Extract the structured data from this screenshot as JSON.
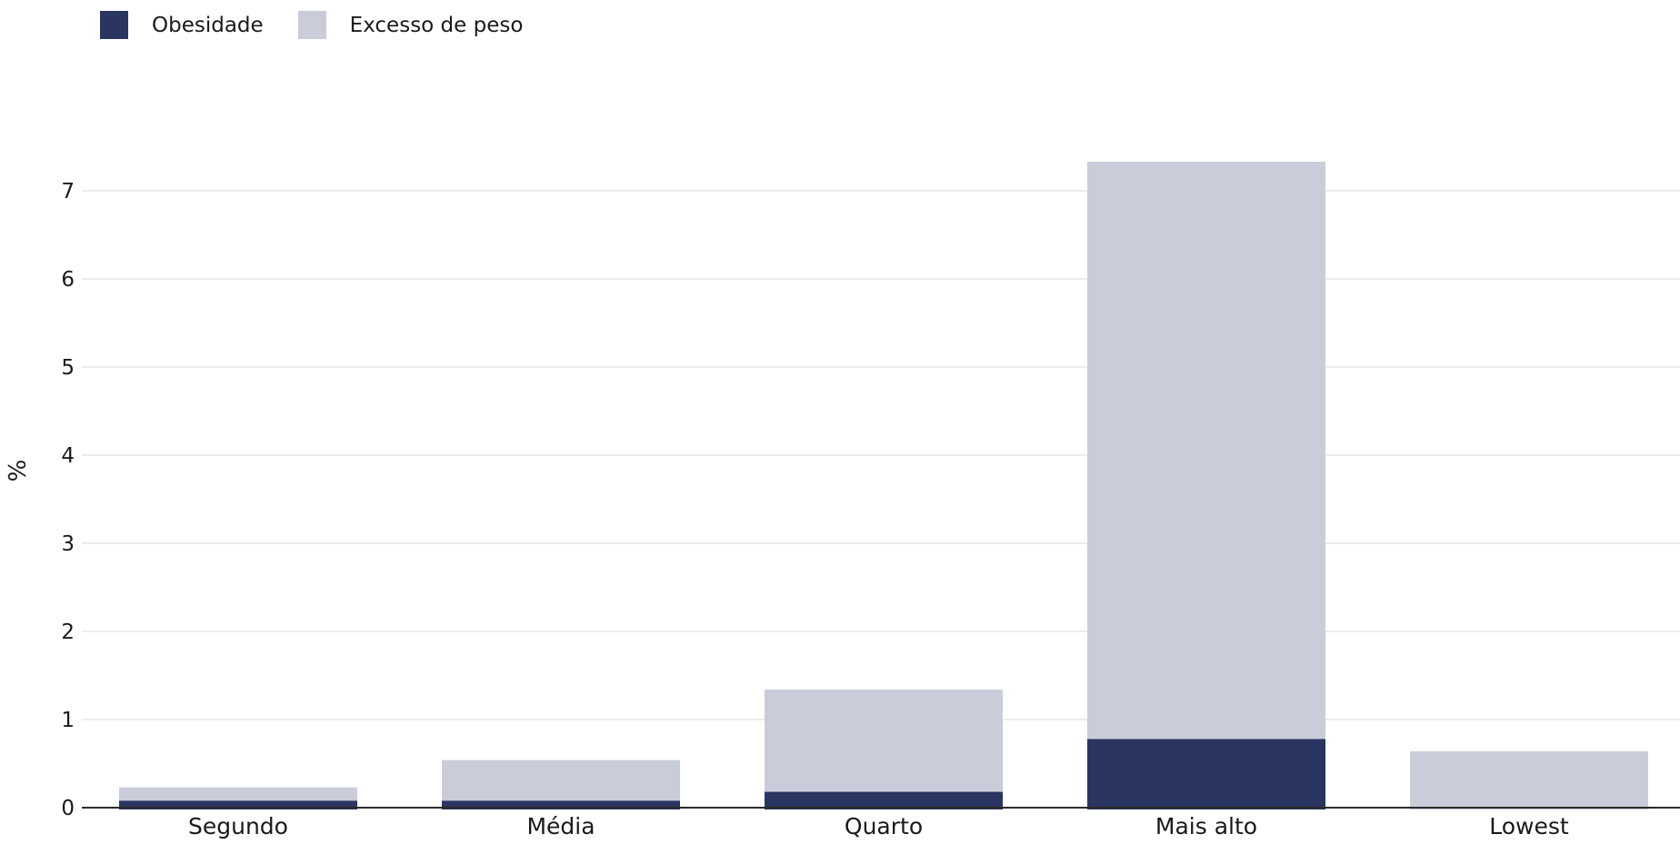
{
  "chart_data": {
    "type": "bar",
    "stacked": true,
    "categories": [
      "Segundo",
      "Média",
      "Quarto",
      "Mais alto",
      "Lowest"
    ],
    "series": [
      {
        "name": "Obesidade",
        "values": [
          0.08,
          0.08,
          0.18,
          0.78,
          0.0
        ],
        "color": "#2a3561"
      },
      {
        "name": "Excesso de peso",
        "values": [
          0.15,
          0.46,
          1.16,
          6.55,
          0.64
        ],
        "color": "#cacdd9"
      }
    ],
    "ylabel": "%",
    "ylim": [
      0,
      7.4
    ],
    "yticks": [
      0,
      1,
      2,
      3,
      4,
      5,
      6,
      7
    ],
    "grid": true,
    "legend_position": "top-left"
  }
}
